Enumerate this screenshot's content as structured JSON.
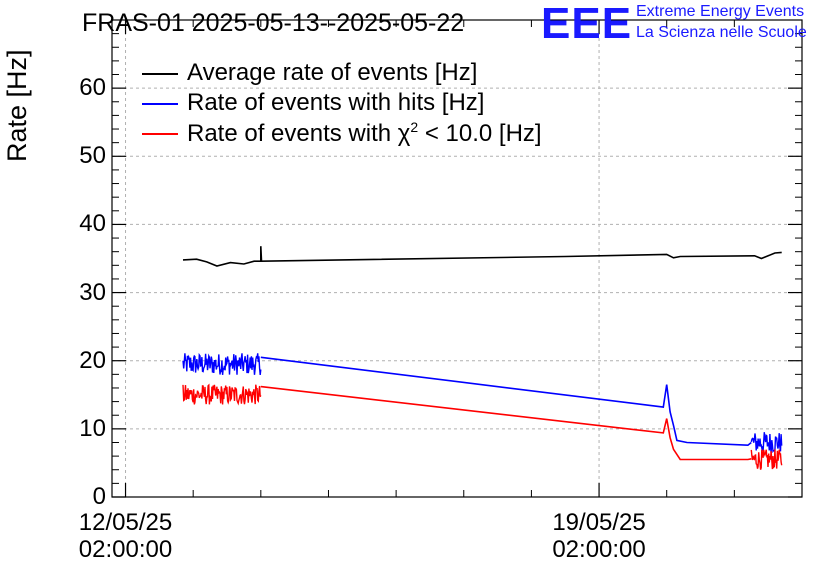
{
  "chart_data": {
    "type": "line",
    "title": "FRAS-01 2025-05-13--2025-05-22",
    "ylabel": "Rate [Hz]",
    "xlabel": "",
    "ylim": [
      0,
      70
    ],
    "yticks": [
      0,
      10,
      20,
      30,
      40,
      50,
      60
    ],
    "xlim_days": [
      -0.2,
      10.0
    ],
    "xticks": [
      {
        "day": 0,
        "date": "12/05/25",
        "time": "02:00:00"
      },
      {
        "day": 7,
        "date": "19/05/25",
        "time": "02:00:00"
      }
    ],
    "grid": true,
    "legend_position": "top-left",
    "series": [
      {
        "name": "Average rate of events [Hz]",
        "color": "#000000",
        "points": [
          [
            0.85,
            34.8
          ],
          [
            1.05,
            34.9
          ],
          [
            1.2,
            34.5
          ],
          [
            1.35,
            33.9
          ],
          [
            1.55,
            34.4
          ],
          [
            1.75,
            34.2
          ],
          [
            1.9,
            34.6
          ],
          [
            2.0,
            34.6
          ],
          [
            2.0,
            36.8
          ],
          [
            2.01,
            34.6
          ],
          [
            6.5,
            35.3
          ],
          [
            8.0,
            35.6
          ],
          [
            8.1,
            35.1
          ],
          [
            8.2,
            35.3
          ],
          [
            9.3,
            35.4
          ],
          [
            9.4,
            35.0
          ],
          [
            9.5,
            35.4
          ],
          [
            9.6,
            35.8
          ],
          [
            9.7,
            35.9
          ]
        ],
        "noisy_segments": [],
        "noise": 0
      },
      {
        "name": "Rate of events with hits [Hz]",
        "color": "#0000ff",
        "points": [
          [
            2.0,
            20.5
          ],
          [
            7.95,
            13.2
          ],
          [
            8.0,
            16.5
          ],
          [
            8.05,
            12.5
          ],
          [
            8.1,
            10.5
          ],
          [
            8.15,
            8.3
          ],
          [
            8.3,
            8.0
          ],
          [
            9.2,
            7.6
          ],
          [
            9.25,
            8.0
          ]
        ],
        "noisy_segments": [
          [
            0.85,
            2.0,
            19.5
          ],
          [
            9.25,
            9.7,
            8.0
          ]
        ],
        "noise": 1.6
      },
      {
        "name": "Rate of events with χ² < 10.0 [Hz]",
        "name_main": "Rate of events with χ",
        "name_sup": "2",
        "name_tail": " < 10.0 [Hz]",
        "color": "#ff0000",
        "points": [
          [
            2.0,
            16.2
          ],
          [
            7.95,
            9.4
          ],
          [
            8.0,
            11.5
          ],
          [
            8.05,
            8.7
          ],
          [
            8.1,
            7.0
          ],
          [
            8.2,
            5.5
          ],
          [
            9.2,
            5.5
          ],
          [
            9.25,
            5.6
          ]
        ],
        "noisy_segments": [
          [
            0.85,
            2.0,
            15.0
          ],
          [
            9.25,
            9.7,
            5.5
          ]
        ],
        "noise": 1.5
      }
    ]
  },
  "logo": {
    "mark": "EEE",
    "line1": "Extreme Energy Events",
    "line2": "La Scienza nelle Scuole"
  }
}
